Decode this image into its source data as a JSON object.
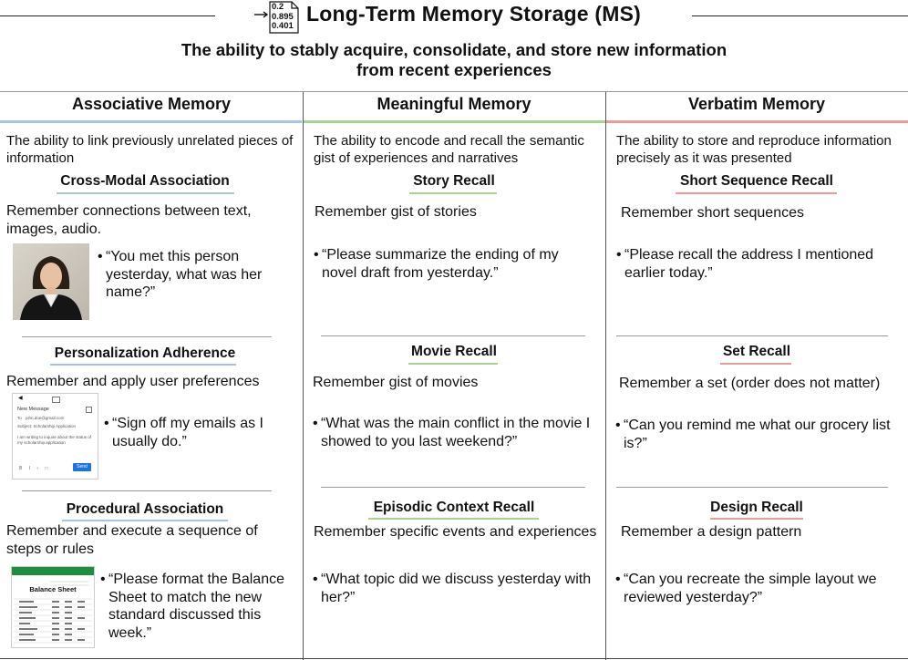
{
  "header": {
    "icon_values": [
      "0.2",
      "0.895",
      "0.401"
    ],
    "title": "Long-Term Memory Storage (MS)",
    "subtitle_line1": "The ability to stably acquire, consolidate, and store new information",
    "subtitle_line2": "from recent experiences"
  },
  "colors": {
    "associative": "#a9c4e2",
    "meaningful": "#a8d48f",
    "verbatim": "#ee9a9a"
  },
  "columns": [
    {
      "title": "Associative Memory",
      "description": "The ability to link previously unrelated pieces of information",
      "tasks": [
        {
          "name": "Cross-Modal Association",
          "text": "Remember connections between text, images, audio.",
          "example": "“You met this person yesterday, what was her name?”"
        },
        {
          "name": "Personalization Adherence",
          "text": "Remember and apply user preferences",
          "example": "“Sign off my emails as I usually do.”"
        },
        {
          "name": "Procedural Association",
          "text": "Remember and execute a sequence of steps or rules",
          "example": "“Please format the Balance Sheet to match the new standard discussed this week.”"
        }
      ]
    },
    {
      "title": "Meaningful Memory",
      "description": "The ability to encode and recall the semantic gist of experiences and narratives",
      "tasks": [
        {
          "name": "Story Recall",
          "text": "Remember gist of stories",
          "example": "“Please summarize the ending of my novel draft from yesterday.”"
        },
        {
          "name": "Movie Recall",
          "text": "Remember gist of movies",
          "example": "“What was the main conflict in the movie I showed to you last weekend?”"
        },
        {
          "name": "Episodic Context Recall",
          "text": "Remember specific events and experiences",
          "example": "“What topic did we discuss yesterday with her?”"
        }
      ]
    },
    {
      "title": "Verbatim Memory",
      "description": "The ability to store and reproduce information precisely as it was presented",
      "tasks": [
        {
          "name": "Short Sequence Recall",
          "text": "Remember short sequences",
          "example": "“Please recall the address I mentioned earlier today.”"
        },
        {
          "name": "Set Recall",
          "text": "Remember a set (order does not matter)",
          "example": "“Can you remind me what our grocery list is?”"
        },
        {
          "name": "Design Recall",
          "text": "Remember a design pattern",
          "example": "“Can you recreate the simple layout we reviewed yesterday?”"
        }
      ]
    }
  ],
  "email_thumb": {
    "heading": "New Message",
    "to": "To",
    "to_value": "john.doe@gmail.com",
    "subject": "Subject: Scholarship Application",
    "body": "I am writing to inquire about the status of my scholarship application",
    "send": "Send"
  },
  "sheet_thumb": {
    "title": "Balance Sheet"
  }
}
